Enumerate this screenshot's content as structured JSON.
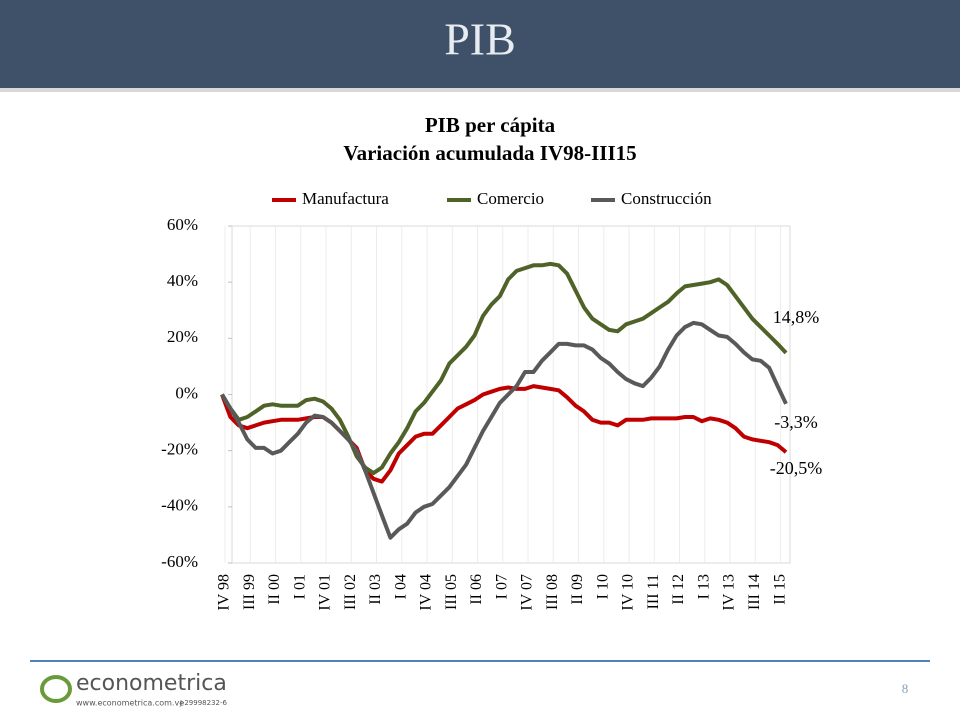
{
  "header": {
    "title": "PIB"
  },
  "footer": {
    "brand": "econometrica",
    "url": "www.econometrica.com.ve",
    "rif": "J-29998232-6",
    "page": "8"
  },
  "chart_data": {
    "type": "line",
    "title": "PIB  per cápita",
    "subtitle": "Variación acumulada IV98-III15",
    "categories": [
      "IV 98",
      null,
      null,
      "III 99",
      null,
      null,
      "II 00",
      null,
      null,
      "I 01",
      null,
      null,
      "IV 01",
      null,
      null,
      "III 02",
      null,
      null,
      "II 03",
      null,
      null,
      "I 04",
      null,
      null,
      "IV 04",
      null,
      null,
      "III 05",
      null,
      null,
      "II 06",
      null,
      null,
      "I 07",
      null,
      null,
      "IV 07",
      null,
      null,
      "III 08",
      null,
      null,
      "II 09",
      null,
      null,
      "I 10",
      null,
      null,
      "IV 10",
      null,
      null,
      "III 11",
      null,
      null,
      "II 12",
      null,
      null,
      "I 13",
      null,
      null,
      "IV 13",
      null,
      null,
      "III 14",
      null,
      null,
      "II 15",
      null
    ],
    "series": [
      {
        "name": "Manufactura",
        "color": "#c00000",
        "values": [
          0,
          -8,
          -11,
          -12,
          -11,
          -10,
          -9.5,
          -9,
          -9,
          -9,
          -8.5,
          -8,
          -8,
          -10,
          -13,
          -16,
          -19,
          -27,
          -30,
          -31,
          -27,
          -21,
          -18,
          -15,
          -14,
          -14,
          -11,
          -8,
          -5,
          -3.5,
          -2,
          0,
          1,
          2,
          2.5,
          2,
          2,
          3,
          2.5,
          2,
          1.5,
          -1,
          -4,
          -6,
          -9,
          -10,
          -10,
          -11,
          -9,
          -9,
          -9,
          -8.5,
          -8.5,
          -8.5,
          -8.5,
          -8,
          -8,
          -9.5,
          -8.5,
          -9,
          -10,
          -12,
          -15,
          -16,
          -16.5,
          -17,
          -18,
          -20.5
        ],
        "value_labels": [
          null,
          null,
          null,
          null,
          null,
          null,
          null,
          null,
          null,
          null,
          null,
          null,
          null,
          null,
          null,
          null,
          null,
          null,
          null,
          null,
          null,
          null,
          null,
          null,
          null,
          null,
          null,
          null,
          null,
          null,
          null,
          null,
          null,
          null,
          null,
          null,
          null,
          null,
          null,
          null,
          null,
          null,
          null,
          null,
          null,
          null,
          null,
          null,
          null,
          null,
          null,
          null,
          null,
          null,
          null,
          null,
          null,
          null,
          null,
          null,
          null,
          null,
          null,
          null,
          null,
          null,
          null,
          "-20,5%"
        ]
      },
      {
        "name": "Comercio",
        "color": "#4f6228",
        "values": [
          0,
          -5,
          -9,
          -8,
          -6,
          -4,
          -3.5,
          -4,
          -4,
          -4,
          -2,
          -1.5,
          -2.5,
          -5,
          -9,
          -15,
          -22,
          -26,
          -28,
          -26,
          -21,
          -17,
          -12,
          -6,
          -3,
          1,
          5,
          11,
          14,
          17,
          21,
          28,
          32,
          35,
          41,
          44,
          45,
          46,
          46,
          46.5,
          46,
          43,
          37,
          31,
          27,
          25,
          23,
          22.5,
          25,
          26,
          27,
          29,
          31,
          33,
          36,
          38.5,
          39,
          39.5,
          40,
          41,
          39,
          35,
          31,
          27,
          24,
          21,
          18,
          14.8
        ],
        "value_labels": [
          null,
          null,
          null,
          null,
          null,
          null,
          null,
          null,
          null,
          null,
          null,
          null,
          null,
          null,
          null,
          null,
          null,
          null,
          null,
          null,
          null,
          null,
          null,
          null,
          null,
          null,
          null,
          null,
          null,
          null,
          null,
          null,
          null,
          null,
          null,
          null,
          null,
          null,
          null,
          null,
          null,
          null,
          null,
          null,
          null,
          null,
          null,
          null,
          null,
          null,
          null,
          null,
          null,
          null,
          null,
          null,
          null,
          null,
          null,
          null,
          null,
          null,
          null,
          null,
          null,
          null,
          null,
          "14,8%"
        ]
      },
      {
        "name": "Construcción",
        "color": "#595959",
        "values": [
          0,
          -5,
          -10,
          -16,
          -19,
          -19,
          -21,
          -20,
          -17,
          -14,
          -10,
          -7.5,
          -8,
          -10,
          -13,
          -16,
          -20,
          -27,
          -35,
          -43,
          -51,
          -48,
          -46,
          -42,
          -40,
          -39,
          -36,
          -33,
          -29,
          -25,
          -19,
          -13,
          -8,
          -3,
          0,
          3,
          8,
          8,
          12,
          15,
          18,
          18,
          17.5,
          17.5,
          16,
          13,
          11,
          8,
          5.5,
          4,
          3,
          6,
          10,
          16,
          21,
          24,
          25.5,
          25,
          23,
          21,
          20.5,
          18,
          15,
          12.5,
          12,
          9.5,
          3,
          -3.3
        ],
        "value_labels": [
          null,
          null,
          null,
          null,
          null,
          null,
          null,
          null,
          null,
          null,
          null,
          null,
          null,
          null,
          null,
          null,
          null,
          null,
          null,
          null,
          null,
          null,
          null,
          null,
          null,
          null,
          null,
          null,
          null,
          null,
          null,
          null,
          null,
          null,
          null,
          null,
          null,
          null,
          null,
          null,
          null,
          null,
          null,
          null,
          null,
          null,
          null,
          null,
          null,
          null,
          null,
          null,
          null,
          null,
          null,
          null,
          null,
          null,
          null,
          null,
          null,
          null,
          null,
          null,
          null,
          null,
          null,
          "-3,3%"
        ]
      }
    ],
    "ylim": [
      -60,
      60
    ],
    "yticks": [
      {
        "value": -60,
        "label": "-60%"
      },
      {
        "value": -40,
        "label": "-40%"
      },
      {
        "value": -20,
        "label": "-20%"
      },
      {
        "value": 0,
        "label": "0%"
      },
      {
        "value": 20,
        "label": "20%"
      },
      {
        "value": 40,
        "label": "40%"
      },
      {
        "value": 60,
        "label": "60%"
      }
    ],
    "legend": "top"
  }
}
